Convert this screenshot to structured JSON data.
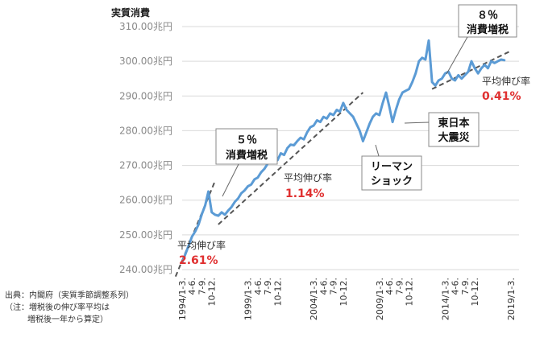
{
  "chart_data": {
    "type": "line",
    "title": "",
    "ylabel": "実質消費",
    "xlabel": "",
    "ylim": [
      240,
      310
    ],
    "yticks": [
      {
        "value": 310,
        "label": "310.00兆円"
      },
      {
        "value": 300,
        "label": "300.00兆円"
      },
      {
        "value": 290,
        "label": "290.00兆円"
      },
      {
        "value": 280,
        "label": "280.00兆円"
      },
      {
        "value": 270,
        "label": "270.00兆円"
      },
      {
        "value": 260,
        "label": "260.00兆円"
      },
      {
        "value": 250,
        "label": "250.00兆円"
      },
      {
        "value": 240,
        "label": "240.00兆円"
      }
    ],
    "xrange": [
      0,
      100
    ],
    "xticks": [
      {
        "x": 0,
        "label": "1994/1-3."
      },
      {
        "x": 3,
        "label": "4-6."
      },
      {
        "x": 6,
        "label": "7-9."
      },
      {
        "x": 9,
        "label": "10-12."
      },
      {
        "x": 20,
        "label": "1999/1-3."
      },
      {
        "x": 23,
        "label": "4-6."
      },
      {
        "x": 26,
        "label": "7-9."
      },
      {
        "x": 29,
        "label": "10-12."
      },
      {
        "x": 40,
        "label": "2004/1-3."
      },
      {
        "x": 43,
        "label": "4-6."
      },
      {
        "x": 46,
        "label": "7-9."
      },
      {
        "x": 49,
        "label": "10-12."
      },
      {
        "x": 60,
        "label": "2009/1-3."
      },
      {
        "x": 63,
        "label": "4-6."
      },
      {
        "x": 66,
        "label": "7-9."
      },
      {
        "x": 69,
        "label": "10-12."
      },
      {
        "x": 80,
        "label": "2014/1-3."
      },
      {
        "x": 83,
        "label": "4-6."
      },
      {
        "x": 86,
        "label": "7-9."
      },
      {
        "x": 89,
        "label": "10-12."
      },
      {
        "x": 100,
        "label": "2019/1-3."
      }
    ],
    "series": [
      {
        "name": "",
        "color": "#5b9bd5",
        "points": [
          [
            0,
            242
          ],
          [
            1,
            244.5
          ],
          [
            2,
            247
          ],
          [
            3,
            249.5
          ],
          [
            4,
            251
          ],
          [
            5,
            253
          ],
          [
            6,
            256
          ],
          [
            7,
            258.5
          ],
          [
            8,
            262.5
          ],
          [
            9,
            256.5
          ],
          [
            10,
            255.8
          ],
          [
            11,
            255.5
          ],
          [
            12,
            256.5
          ],
          [
            13,
            255.8
          ],
          [
            14,
            257
          ],
          [
            15,
            258
          ],
          [
            16,
            259.5
          ],
          [
            17,
            260.5
          ],
          [
            18,
            262
          ],
          [
            19,
            262.8
          ],
          [
            20,
            264
          ],
          [
            21,
            264.5
          ],
          [
            22,
            266
          ],
          [
            23,
            266.5
          ],
          [
            24,
            268
          ],
          [
            25,
            269
          ],
          [
            26,
            270.5
          ],
          [
            27,
            271.5
          ],
          [
            28,
            272
          ],
          [
            29,
            271.5
          ],
          [
            30,
            273.5
          ],
          [
            31,
            273
          ],
          [
            32,
            275
          ],
          [
            33,
            276
          ],
          [
            34,
            275.8
          ],
          [
            35,
            277
          ],
          [
            36,
            278
          ],
          [
            37,
            277.5
          ],
          [
            38,
            279.5
          ],
          [
            39,
            281
          ],
          [
            40,
            281.5
          ],
          [
            41,
            283
          ],
          [
            42,
            282.5
          ],
          [
            43,
            284
          ],
          [
            44,
            283.5
          ],
          [
            45,
            285
          ],
          [
            46,
            284.5
          ],
          [
            47,
            286
          ],
          [
            48,
            285.5
          ],
          [
            49,
            288
          ],
          [
            50,
            286
          ],
          [
            51,
            285
          ],
          [
            52,
            284
          ],
          [
            53,
            282
          ],
          [
            54,
            280
          ],
          [
            55,
            277
          ],
          [
            56,
            279.5
          ],
          [
            57,
            282
          ],
          [
            58,
            284
          ],
          [
            59,
            285
          ],
          [
            60,
            284.5
          ],
          [
            61,
            288
          ],
          [
            62,
            291
          ],
          [
            63,
            287
          ],
          [
            64,
            282.5
          ],
          [
            65,
            286
          ],
          [
            66,
            289
          ],
          [
            67,
            291
          ],
          [
            68,
            291.5
          ],
          [
            69,
            292
          ],
          [
            70,
            294
          ],
          [
            71,
            296.5
          ],
          [
            72,
            300
          ],
          [
            73,
            301
          ],
          [
            74,
            300.5
          ],
          [
            75,
            306
          ],
          [
            76,
            294
          ],
          [
            77,
            293
          ],
          [
            78,
            294.5
          ],
          [
            79,
            295
          ],
          [
            80,
            296.5
          ],
          [
            81,
            297
          ],
          [
            82,
            295
          ],
          [
            83,
            294.5
          ],
          [
            84,
            296
          ],
          [
            85,
            295
          ],
          [
            86,
            296
          ],
          [
            87,
            297
          ],
          [
            88,
            300
          ],
          [
            89,
            298
          ],
          [
            90,
            296.5
          ],
          [
            91,
            298
          ],
          [
            92,
            299
          ],
          [
            93,
            298
          ],
          [
            94,
            300
          ],
          [
            95,
            299.5
          ],
          [
            96,
            300
          ],
          [
            97,
            300.5
          ],
          [
            98,
            300.3
          ]
        ]
      }
    ],
    "trend_lines": [
      {
        "x0": -2,
        "y0": 238.0,
        "x1": 10,
        "y1": 265.5
      },
      {
        "x0": 11,
        "y0": 253.0,
        "x1": 55,
        "y1": 291.0
      },
      {
        "x0": 76,
        "y0": 292.0,
        "x1": 100,
        "y1": 303.0
      }
    ],
    "annotations": {
      "tax5": [
        "５％",
        "消費増税"
      ],
      "tax8": [
        "８％",
        "消費増税"
      ],
      "lehman": [
        "リーマン",
        "ショック"
      ],
      "quake": [
        "東日本",
        "大震災"
      ],
      "rate1_label": "平均伸び率",
      "rate1_value": "2.61%",
      "rate2_label": "平均伸び率",
      "rate2_value": "1.14%",
      "rate3_label": "平均伸び率",
      "rate3_value": "0.41%"
    },
    "grid": true,
    "legend": "none"
  },
  "notes": {
    "line1": "出典：内閣府（実質季節調整系列）",
    "line2": "（注：増税後の伸び率平均は",
    "line3": "増税後一年から算定）"
  }
}
